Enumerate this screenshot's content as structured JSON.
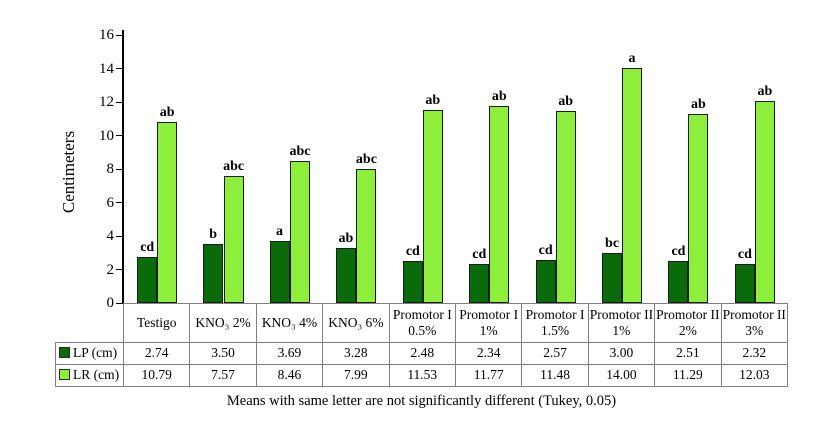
{
  "chart_data": {
    "type": "bar",
    "title": "",
    "ylabel": "Centimeters",
    "xlabel": "",
    "ylim": [
      0,
      16
    ],
    "yticks": [
      0,
      2,
      4,
      6,
      8,
      10,
      12,
      14,
      16
    ],
    "grid": false,
    "legend_position": "table-left",
    "categories": [
      "Testigo",
      "KNO₃ 2%",
      "KNO₃ 4%",
      "KNO₃ 6%",
      "Promotor I 0.5%",
      "Promotor I 1%",
      "Promotor I 1.5%",
      "Promotor II 1%",
      "Promotor II 2%",
      "Promotor II 3%"
    ],
    "series": [
      {
        "name": "LP (cm)",
        "color": "#0a6b0a",
        "values": [
          2.74,
          3.5,
          3.69,
          3.28,
          2.48,
          2.34,
          2.57,
          3.0,
          2.51,
          2.32
        ],
        "value_labels": [
          "2.74",
          "3.50",
          "3.69",
          "3.28",
          "2.48",
          "2.34",
          "2.57",
          "3.00",
          "2.51",
          "2.32"
        ],
        "letters": [
          "cd",
          "b",
          "a",
          "ab",
          "cd",
          "cd",
          "cd",
          "bc",
          "cd",
          "cd"
        ]
      },
      {
        "name": "LR (cm)",
        "color": "#8dee3c",
        "values": [
          10.79,
          7.57,
          8.46,
          7.99,
          11.53,
          11.77,
          11.48,
          14.0,
          11.29,
          12.03
        ],
        "value_labels": [
          "10.79",
          "7.57",
          "8.46",
          "7.99",
          "11.53",
          "11.77",
          "11.48",
          "14.00",
          "11.29",
          "12.03"
        ],
        "letters": [
          "ab",
          "abc",
          "abc",
          "abc",
          "ab",
          "ab",
          "ab",
          "a",
          "ab",
          "ab"
        ]
      }
    ],
    "footer": "Means with same letter are not significantly different (Tukey, 0.05)"
  }
}
